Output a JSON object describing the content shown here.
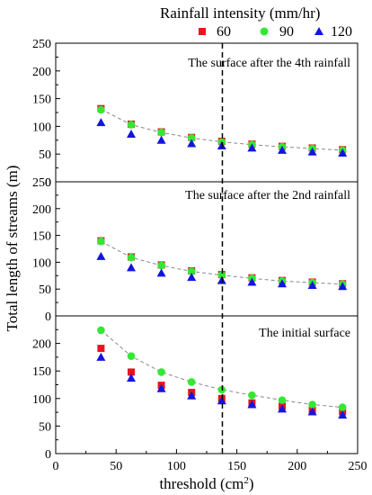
{
  "chart_data": {
    "type": "scatter",
    "legend": {
      "title": "Rainfall intensity (mm/hr)",
      "placement": "top",
      "series": [
        {
          "label": "60",
          "color": "#e8141e",
          "marker": "square"
        },
        {
          "label": "90",
          "color": "#33e833",
          "marker": "circle"
        },
        {
          "label": "120",
          "color": "#1414e0",
          "marker": "triangle"
        }
      ]
    },
    "xlabel": "threshold (cm",
    "xlabel_sup": "2",
    "xlabel_close": ")",
    "ylabel": "Total length of streams (m)",
    "xlim": [
      0,
      250
    ],
    "xticks": [
      "0",
      "50",
      "100",
      "150",
      "200",
      "250"
    ],
    "vline_x": 138,
    "grid": false,
    "panels": [
      {
        "title": "The surface after the 4th rainfall",
        "ylim": [
          0,
          250
        ],
        "yticks": [
          "0",
          "50",
          "100",
          "150",
          "200",
          "250"
        ],
        "series": [
          {
            "name": "60",
            "x": [
              37.5,
              62.5,
              87.5,
              112.5,
              137.5,
              162.5,
              187.5,
              212.5,
              237.5
            ],
            "y": [
              132,
              104,
              90,
              80,
              73,
              68,
              64,
              61,
              58
            ]
          },
          {
            "name": "90",
            "x": [
              37.5,
              62.5,
              87.5,
              112.5,
              137.5,
              162.5,
              187.5,
              212.5,
              237.5
            ],
            "y": [
              130,
              103,
              89,
              79,
              72,
              67,
              63,
              60,
              57
            ]
          },
          {
            "name": "120",
            "x": [
              37.5,
              62.5,
              87.5,
              112.5,
              137.5,
              162.5,
              187.5,
              212.5,
              237.5
            ],
            "y": [
              107,
              86,
              75,
              69,
              65,
              61,
              57,
              54,
              52
            ]
          }
        ],
        "fit": [
          131,
          103,
          89,
          79,
          72,
          67,
          63,
          60,
          57
        ]
      },
      {
        "title": "The surface after the 2nd rainfall",
        "ylim": [
          0,
          250
        ],
        "yticks": [
          "0",
          "50",
          "100",
          "150",
          "200",
          "250"
        ],
        "series": [
          {
            "name": "60",
            "x": [
              37.5,
              62.5,
              87.5,
              112.5,
              137.5,
              162.5,
              187.5,
              212.5,
              237.5
            ],
            "y": [
              140,
              110,
              95,
              84,
              77,
              71,
              66,
              63,
              60
            ]
          },
          {
            "name": "90",
            "x": [
              37.5,
              62.5,
              87.5,
              112.5,
              137.5,
              162.5,
              187.5,
              212.5,
              237.5
            ],
            "y": [
              139,
              109,
              94,
              83,
              76,
              70,
              65,
              62,
              59
            ]
          },
          {
            "name": "120",
            "x": [
              37.5,
              62.5,
              87.5,
              112.5,
              137.5,
              162.5,
              187.5,
              212.5,
              237.5
            ],
            "y": [
              111,
              90,
              80,
              72,
              66,
              63,
              60,
              57,
              55
            ]
          }
        ],
        "fit": [
          139,
          109,
          94,
          83,
          76,
          70,
          65,
          62,
          59
        ]
      },
      {
        "title": "The initial surface",
        "ylim": [
          0,
          250
        ],
        "yticks": [
          "0",
          "50",
          "100",
          "150",
          "200"
        ],
        "series": [
          {
            "name": "60",
            "x": [
              37.5,
              62.5,
              87.5,
              112.5,
              137.5,
              162.5,
              187.5,
              212.5,
              237.5
            ],
            "y": [
              191,
              148,
              124,
              111,
              100,
              92,
              86,
              79,
              76
            ]
          },
          {
            "name": "90",
            "x": [
              37.5,
              62.5,
              87.5,
              112.5,
              137.5,
              162.5,
              187.5,
              212.5,
              237.5
            ],
            "y": [
              224,
              177,
              148,
              130,
              116,
              106,
              97,
              89,
              84
            ]
          },
          {
            "name": "120",
            "x": [
              37.5,
              62.5,
              87.5,
              112.5,
              137.5,
              162.5,
              187.5,
              212.5,
              237.5
            ],
            "y": [
              175,
              137,
              118,
              105,
              96,
              89,
              81,
              76,
              70
            ]
          }
        ],
        "fit": [
          224,
          177,
          148,
          130,
          116,
          106,
          97,
          89,
          84
        ]
      }
    ]
  }
}
